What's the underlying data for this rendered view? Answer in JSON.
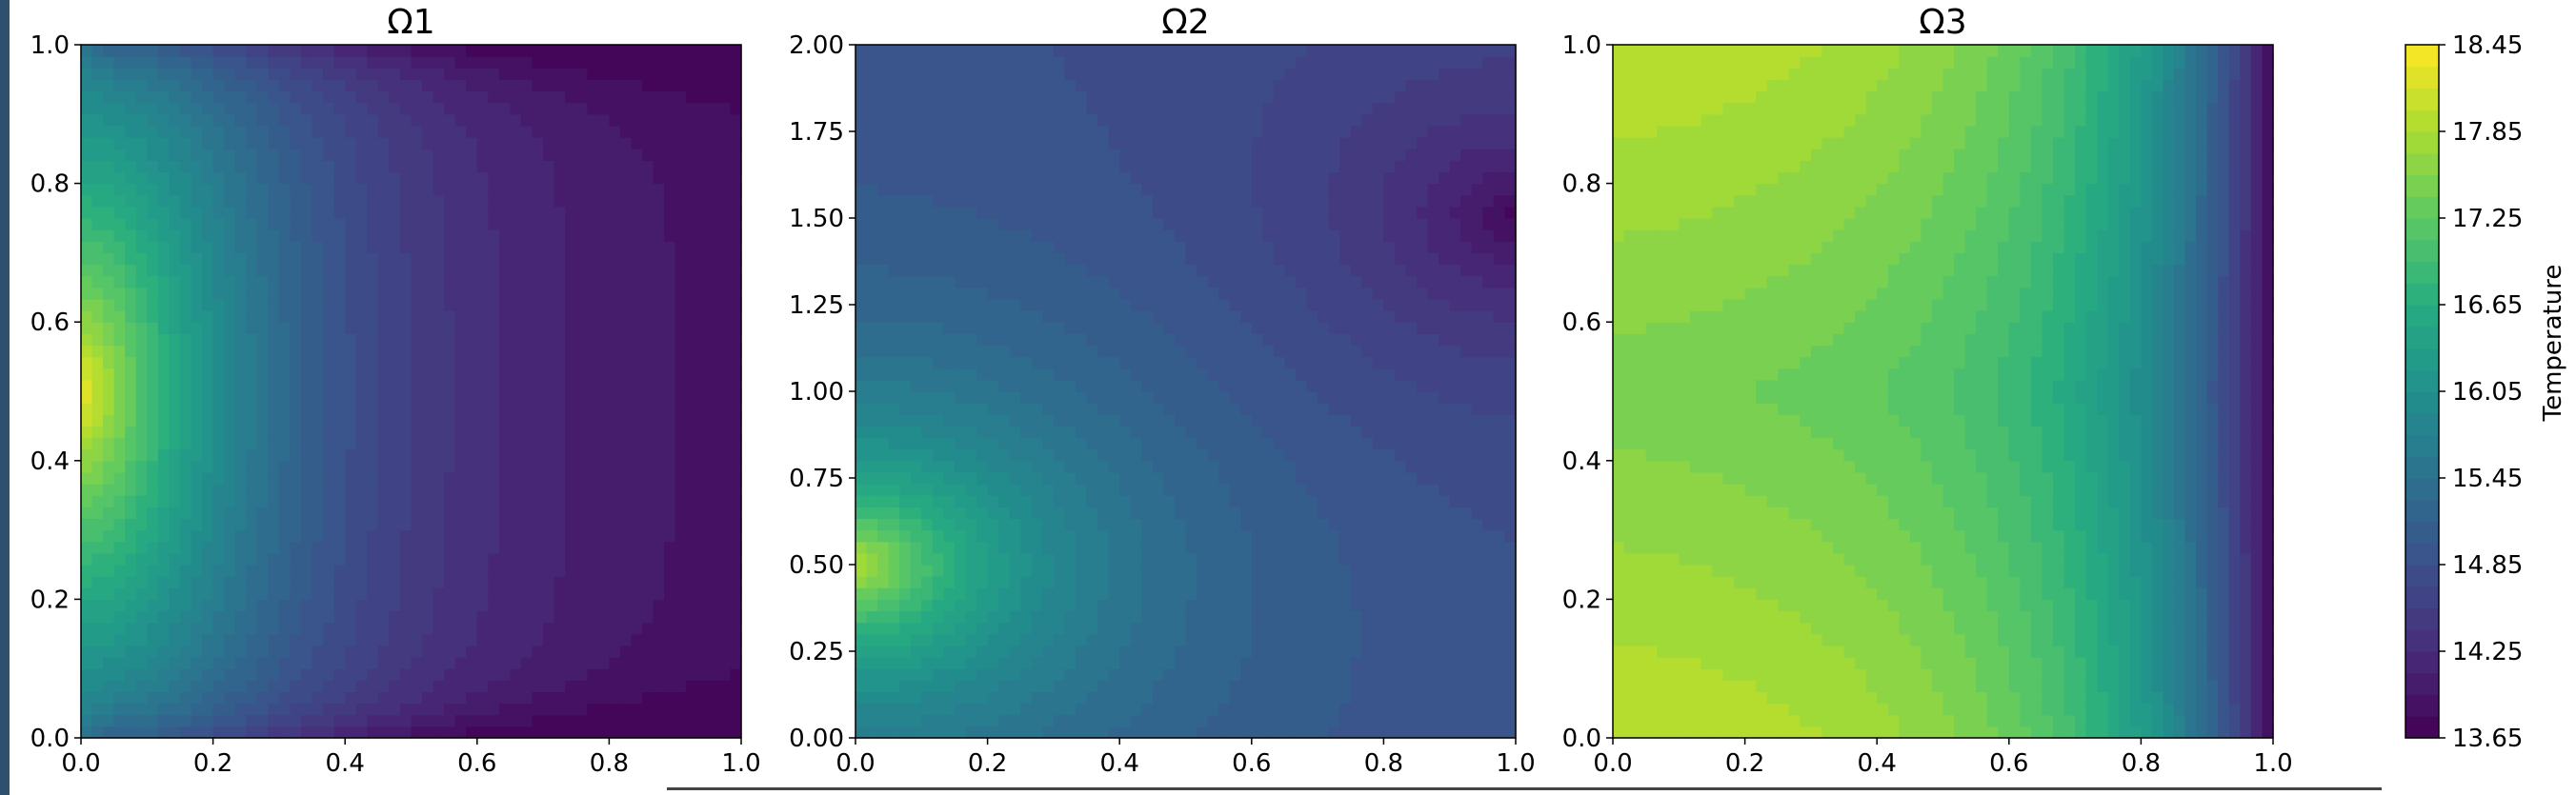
{
  "chart_data": [
    {
      "type": "heatmap",
      "title": "Ω1",
      "xlim": [
        0,
        1
      ],
      "ylim": [
        0,
        1
      ],
      "xticks": [
        "0.0",
        "0.2",
        "0.4",
        "0.6",
        "0.8",
        "1.0"
      ],
      "yticks": [
        "0.0",
        "0.2",
        "0.4",
        "0.6",
        "0.8",
        "1.0"
      ],
      "description_of_field": "hot left edge (~18.4) decaying to ~13.9 at the right; coldest along top and bottom edges",
      "field": {
        "kind": "left-hot",
        "hot_x": 0.0,
        "hot_y_center": 0.5,
        "max": 18.35,
        "min": 13.75
      }
    },
    {
      "type": "heatmap",
      "title": "Ω2",
      "xlim": [
        0,
        1
      ],
      "ylim": [
        0,
        2
      ],
      "xticks": [
        "0.0",
        "0.2",
        "0.4",
        "0.6",
        "0.8",
        "1.0"
      ],
      "yticks": [
        "0.00",
        "0.25",
        "0.50",
        "0.75",
        "1.00",
        "1.25",
        "1.50",
        "1.75",
        "2.00"
      ],
      "field": {
        "kind": "hot-cold-spots",
        "hot_spot": [
          0.0,
          0.5
        ],
        "cold_spot": [
          1.0,
          1.5
        ],
        "base": 14.85,
        "max": 18.0,
        "min": 13.7
      }
    },
    {
      "type": "heatmap",
      "title": "Ω3",
      "xlim": [
        0,
        1
      ],
      "ylim": [
        0,
        1
      ],
      "xticks": [
        "0.0",
        "0.2",
        "0.4",
        "0.6",
        "0.8",
        "1.0"
      ],
      "yticks": [
        "0.0",
        "0.2",
        "0.4",
        "0.6",
        "0.8",
        "1.0"
      ],
      "field": {
        "kind": "right-cold",
        "max": 18.3,
        "min": 13.7
      }
    }
  ],
  "colorbar": {
    "label": "Temperature",
    "min": 13.65,
    "max": 18.45,
    "ticks": [
      "13.65",
      "14.25",
      "14.85",
      "15.45",
      "16.05",
      "16.65",
      "17.25",
      "17.85",
      "18.45"
    ],
    "colormap": "viridis",
    "levels": 32
  }
}
